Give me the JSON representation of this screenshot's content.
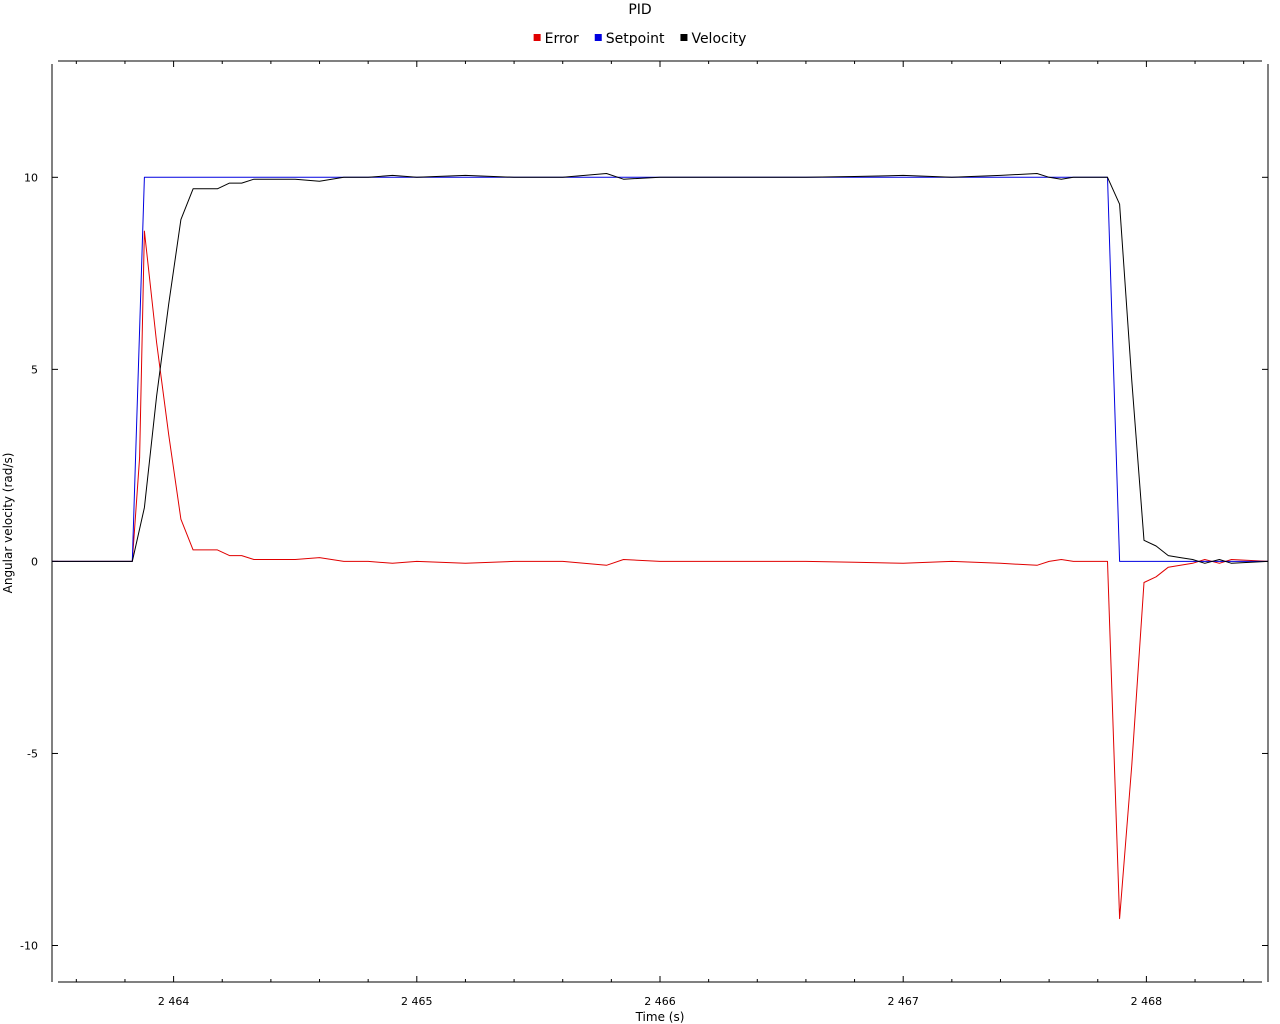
{
  "chart_data": {
    "type": "line",
    "title": "PID",
    "xlabel": "Time (s)",
    "ylabel": "Angular velocity (rad/s)",
    "xlim": [
      2463.5,
      2468.5
    ],
    "ylim": [
      -10.95,
      12.95
    ],
    "x_ticks": [
      2464,
      2465,
      2466,
      2467,
      2468
    ],
    "x_tick_labels": [
      "2 464",
      "2 465",
      "2 466",
      "2 467",
      "2 468"
    ],
    "y_ticks": [
      -10,
      -5,
      0,
      5,
      10
    ],
    "y_tick_labels": [
      "-10",
      "-5",
      "0",
      "5",
      "10"
    ],
    "x_minor_step": 0.2,
    "grid": false,
    "legend": "top-center",
    "series": [
      {
        "name": "Error",
        "color": "#e00000",
        "x": [
          2463.5,
          2463.83,
          2463.86,
          2463.88,
          2463.93,
          2463.98,
          2464.03,
          2464.08,
          2464.13,
          2464.18,
          2464.23,
          2464.28,
          2464.33,
          2464.38,
          2464.5,
          2464.6,
          2464.7,
          2464.8,
          2464.9,
          2465.0,
          2465.2,
          2465.4,
          2465.6,
          2465.78,
          2465.85,
          2466.0,
          2466.2,
          2466.4,
          2466.6,
          2466.8,
          2467.0,
          2467.2,
          2467.4,
          2467.55,
          2467.6,
          2467.65,
          2467.7,
          2467.84,
          2467.89,
          2467.94,
          2467.99,
          2468.04,
          2468.09,
          2468.14,
          2468.19,
          2468.24,
          2468.3,
          2468.35,
          2468.5
        ],
        "y": [
          0.0,
          0.0,
          2.7,
          8.6,
          5.7,
          3.3,
          1.1,
          0.3,
          0.3,
          0.3,
          0.15,
          0.15,
          0.05,
          0.05,
          0.05,
          0.1,
          0.0,
          0.0,
          -0.05,
          0.0,
          -0.05,
          0.0,
          0.0,
          -0.1,
          0.05,
          0.0,
          0.0,
          0.0,
          0.0,
          -0.02,
          -0.05,
          0.0,
          -0.05,
          -0.1,
          0.0,
          0.05,
          0.0,
          0.0,
          -9.3,
          -5.3,
          -0.55,
          -0.4,
          -0.15,
          -0.1,
          -0.05,
          0.05,
          -0.05,
          0.05,
          0.0
        ]
      },
      {
        "name": "Setpoint",
        "color": "#0000e0",
        "x": [
          2463.5,
          2463.83,
          2463.88,
          2467.84,
          2467.89,
          2468.5
        ],
        "y": [
          0.0,
          0.0,
          10.0,
          10.0,
          0.0,
          0.0
        ]
      },
      {
        "name": "Velocity",
        "color": "#000000",
        "x": [
          2463.5,
          2463.83,
          2463.88,
          2463.93,
          2463.98,
          2464.03,
          2464.08,
          2464.13,
          2464.18,
          2464.23,
          2464.28,
          2464.33,
          2464.38,
          2464.5,
          2464.6,
          2464.7,
          2464.8,
          2464.9,
          2465.0,
          2465.2,
          2465.4,
          2465.6,
          2465.78,
          2465.85,
          2466.0,
          2466.2,
          2466.4,
          2466.6,
          2466.8,
          2467.0,
          2467.2,
          2467.4,
          2467.55,
          2467.6,
          2467.65,
          2467.7,
          2467.84,
          2467.89,
          2467.94,
          2467.99,
          2468.04,
          2468.09,
          2468.14,
          2468.19,
          2468.24,
          2468.3,
          2468.35,
          2468.5
        ],
        "y": [
          0.0,
          0.0,
          1.4,
          4.3,
          6.7,
          8.9,
          9.7,
          9.7,
          9.7,
          9.85,
          9.85,
          9.95,
          9.95,
          9.95,
          9.9,
          10.0,
          10.0,
          10.05,
          10.0,
          10.05,
          10.0,
          10.0,
          10.1,
          9.95,
          10.0,
          10.0,
          10.0,
          10.0,
          10.02,
          10.05,
          10.0,
          10.05,
          10.1,
          10.0,
          9.95,
          10.0,
          10.0,
          9.3,
          4.7,
          0.55,
          0.4,
          0.15,
          0.1,
          0.05,
          -0.05,
          0.05,
          -0.05,
          0.0
        ]
      }
    ]
  }
}
